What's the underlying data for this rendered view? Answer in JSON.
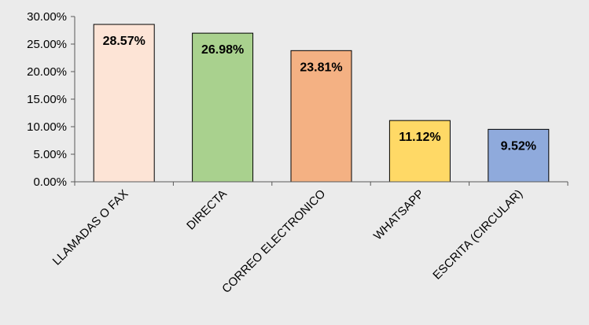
{
  "chart_data": {
    "type": "bar",
    "categories": [
      "LLAMADAS O FAX",
      "DIRECTA",
      "CORREO ELECTRONICO",
      "WHATSAPP",
      "ESCRITA (CIRCULAR)"
    ],
    "values": [
      28.57,
      26.98,
      23.81,
      11.12,
      9.52
    ],
    "data_labels": [
      "28.57%",
      "26.98%",
      "23.81%",
      "11.12%",
      "9.52%"
    ],
    "bar_colors": [
      "#fde4d6",
      "#a9d18e",
      "#f4b183",
      "#ffd966",
      "#8faadc"
    ],
    "ylim": [
      0,
      30
    ],
    "yticks": [
      0,
      5,
      10,
      15,
      20,
      25,
      30
    ],
    "ytick_labels": [
      "0.00%",
      "5.00%",
      "10.00%",
      "15.00%",
      "20.00%",
      "25.00%",
      "30.00%"
    ],
    "title": "",
    "xlabel": "",
    "ylabel": "",
    "grid": false,
    "legend": "none",
    "background": "#ebebeb"
  }
}
